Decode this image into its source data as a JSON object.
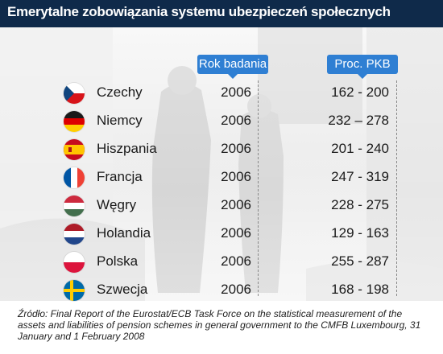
{
  "title": "Emerytalne zobowiązania systemu ubezpieczeń społecznych",
  "source": "Źródło: Final Report of the Eurostat/ECB Task Force on the statistical measurement of the assets and  liabilities of pension schemes in general government to the CMFB Luxembourg, 31 January and 1 February 2008",
  "chart_data": {
    "type": "table",
    "columns": [
      "",
      "Rok badania",
      "Proc. PKB"
    ],
    "rows": [
      {
        "country": "Czechy",
        "flag": "czech-flag",
        "year": "2006",
        "pkb": "162 - 200",
        "pkb_min": 162,
        "pkb_max": 200
      },
      {
        "country": "Niemcy",
        "flag": "german-flag",
        "year": "2006",
        "pkb": "232 – 278",
        "pkb_min": 232,
        "pkb_max": 278
      },
      {
        "country": "Hiszpania",
        "flag": "spanish-flag",
        "year": "2006",
        "pkb": "201 - 240",
        "pkb_min": 201,
        "pkb_max": 240
      },
      {
        "country": "Francja",
        "flag": "french-flag",
        "year": "2006",
        "pkb": "247 - 319",
        "pkb_min": 247,
        "pkb_max": 319
      },
      {
        "country": "Węgry",
        "flag": "hungarian-flag",
        "year": "2006",
        "pkb": "228 - 275",
        "pkb_min": 228,
        "pkb_max": 275
      },
      {
        "country": "Holandia",
        "flag": "dutch-flag",
        "year": "2006",
        "pkb": "129 - 163",
        "pkb_min": 129,
        "pkb_max": 163
      },
      {
        "country": "Polska",
        "flag": "polish-flag",
        "year": "2006",
        "pkb": "255 - 287",
        "pkb_min": 255,
        "pkb_max": 287
      },
      {
        "country": "Szwecja",
        "flag": "swedish-flag",
        "year": "2006",
        "pkb": "168 - 198",
        "pkb_min": 168,
        "pkb_max": 198
      }
    ]
  },
  "colors": {
    "title_bar": "#0f2a4a",
    "header_pill": "#2f7fd3",
    "text": "#1a1a1a"
  }
}
